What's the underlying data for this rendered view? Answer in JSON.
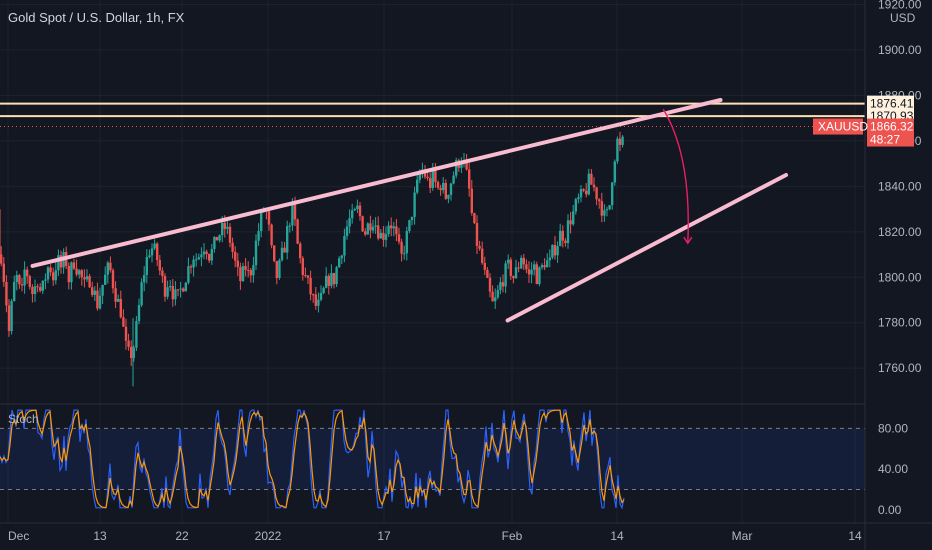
{
  "header": {
    "title": "Gold Spot / U.S. Dollar, 1h, FX"
  },
  "chart_data": {
    "type": "candlestick",
    "title": "Gold Spot / U.S. Dollar, 1h, FX",
    "currency": "USD",
    "price_axis": {
      "ticks": [
        "1920.00",
        "1900.00",
        "1880.00",
        "1860.00",
        "1840.00",
        "1820.00",
        "1800.00",
        "1780.00",
        "1760.00"
      ],
      "range": [
        1746,
        1922
      ]
    },
    "time_axis": {
      "labels": [
        "Dec",
        "13",
        "22",
        "2022",
        "17",
        "Feb",
        "14",
        "Mar",
        "14"
      ]
    },
    "price_labels": [
      {
        "text": "1876.41",
        "value": 1876.41
      },
      {
        "text": "1870.93",
        "value": 1870.93
      }
    ],
    "current": {
      "symbol": "XAUUSD",
      "price": "1866.32",
      "countdown": "48:27",
      "value": 1866.32
    },
    "resistance_lines": [
      1876.41,
      1870.93
    ],
    "channel": {
      "upper": [
        {
          "date": "2021-12-01",
          "price": 1805
        },
        {
          "date": "2022-02-23",
          "price": 1878
        }
      ],
      "lower": [
        {
          "date": "2022-01-28",
          "price": 1781
        },
        {
          "date": "2022-03-03",
          "price": 1845
        }
      ]
    },
    "projection": {
      "from": {
        "date": "2022-02-16",
        "price": 1874
      },
      "to": {
        "date": "2022-02-19",
        "price": 1815
      }
    },
    "candle_path": [
      [
        0,
        1810
      ],
      [
        4,
        1795
      ],
      [
        8,
        1775
      ],
      [
        12,
        1795
      ],
      [
        16,
        1800
      ],
      [
        20,
        1790
      ],
      [
        24,
        1805
      ],
      [
        28,
        1798
      ],
      [
        32,
        1792
      ],
      [
        36,
        1800
      ],
      [
        40,
        1792
      ],
      [
        44,
        1800
      ],
      [
        48,
        1806
      ],
      [
        52,
        1800
      ],
      [
        56,
        1808
      ],
      [
        60,
        1804
      ],
      [
        64,
        1810
      ],
      [
        68,
        1798
      ],
      [
        72,
        1808
      ],
      [
        76,
        1804
      ],
      [
        80,
        1800
      ],
      [
        84,
        1795
      ],
      [
        88,
        1800
      ],
      [
        92,
        1795
      ],
      [
        96,
        1788
      ],
      [
        100,
        1795
      ],
      [
        104,
        1800
      ],
      [
        108,
        1805
      ],
      [
        112,
        1797
      ],
      [
        116,
        1790
      ],
      [
        120,
        1785
      ],
      [
        124,
        1770
      ],
      [
        128,
        1765
      ],
      [
        132,
        1768
      ],
      [
        136,
        1780
      ],
      [
        140,
        1795
      ],
      [
        144,
        1805
      ],
      [
        148,
        1812
      ],
      [
        152,
        1813
      ],
      [
        156,
        1808
      ],
      [
        160,
        1800
      ],
      [
        164,
        1795
      ],
      [
        168,
        1800
      ],
      [
        172,
        1793
      ],
      [
        176,
        1790
      ],
      [
        180,
        1795
      ],
      [
        184,
        1800
      ],
      [
        188,
        1805
      ],
      [
        192,
        1810
      ],
      [
        196,
        1808
      ],
      [
        200,
        1812
      ],
      [
        204,
        1815
      ],
      [
        208,
        1810
      ],
      [
        212,
        1812
      ],
      [
        216,
        1818
      ],
      [
        220,
        1820
      ],
      [
        224,
        1822
      ],
      [
        228,
        1818
      ],
      [
        232,
        1810
      ],
      [
        236,
        1802
      ],
      [
        240,
        1798
      ],
      [
        244,
        1805
      ],
      [
        248,
        1800
      ],
      [
        252,
        1808
      ],
      [
        256,
        1818
      ],
      [
        260,
        1826
      ],
      [
        264,
        1832
      ],
      [
        268,
        1820
      ],
      [
        272,
        1805
      ],
      [
        276,
        1800
      ],
      [
        280,
        1808
      ],
      [
        284,
        1815
      ],
      [
        288,
        1825
      ],
      [
        292,
        1830
      ],
      [
        296,
        1815
      ],
      [
        300,
        1805
      ],
      [
        304,
        1800
      ],
      [
        308,
        1795
      ],
      [
        312,
        1790
      ],
      [
        316,
        1786
      ],
      [
        320,
        1790
      ],
      [
        324,
        1796
      ],
      [
        328,
        1800
      ],
      [
        332,
        1798
      ],
      [
        336,
        1805
      ],
      [
        340,
        1812
      ],
      [
        344,
        1820
      ],
      [
        348,
        1825
      ],
      [
        352,
        1826
      ],
      [
        356,
        1830
      ],
      [
        360,
        1825
      ],
      [
        364,
        1820
      ],
      [
        368,
        1824
      ],
      [
        372,
        1826
      ],
      [
        376,
        1822
      ],
      [
        380,
        1818
      ],
      [
        384,
        1820
      ],
      [
        388,
        1825
      ],
      [
        392,
        1822
      ],
      [
        396,
        1815
      ],
      [
        400,
        1808
      ],
      [
        404,
        1815
      ],
      [
        408,
        1822
      ],
      [
        412,
        1832
      ],
      [
        416,
        1840
      ],
      [
        420,
        1848
      ],
      [
        424,
        1845
      ],
      [
        428,
        1840
      ],
      [
        432,
        1845
      ],
      [
        436,
        1838
      ],
      [
        440,
        1842
      ],
      [
        444,
        1835
      ],
      [
        448,
        1840
      ],
      [
        452,
        1845
      ],
      [
        456,
        1850
      ],
      [
        460,
        1853
      ],
      [
        464,
        1848
      ],
      [
        468,
        1838
      ],
      [
        472,
        1822
      ],
      [
        476,
        1815
      ],
      [
        480,
        1808
      ],
      [
        484,
        1800
      ],
      [
        488,
        1793
      ],
      [
        492,
        1787
      ],
      [
        496,
        1792
      ],
      [
        500,
        1798
      ],
      [
        504,
        1802
      ],
      [
        508,
        1805
      ],
      [
        512,
        1800
      ],
      [
        516,
        1803
      ],
      [
        520,
        1810
      ],
      [
        524,
        1805
      ],
      [
        528,
        1800
      ],
      [
        532,
        1806
      ],
      [
        536,
        1800
      ],
      [
        540,
        1803
      ],
      [
        544,
        1808
      ],
      [
        548,
        1805
      ],
      [
        552,
        1812
      ],
      [
        556,
        1815
      ],
      [
        560,
        1820
      ],
      [
        564,
        1818
      ],
      [
        568,
        1825
      ],
      [
        572,
        1828
      ],
      [
        576,
        1833
      ],
      [
        580,
        1835
      ],
      [
        584,
        1838
      ],
      [
        588,
        1842
      ],
      [
        592,
        1840
      ],
      [
        596,
        1836
      ],
      [
        600,
        1832
      ],
      [
        604,
        1825
      ],
      [
        608,
        1830
      ],
      [
        612,
        1850
      ],
      [
        616,
        1860
      ],
      [
        620,
        1855
      ],
      [
        624,
        1866.32
      ]
    ],
    "oscillator": {
      "name": "Stoch",
      "ticks": [
        "80.00",
        "40.00",
        "0.00"
      ],
      "range": [
        -8,
        103
      ],
      "upper_band": 80,
      "lower_band": 20
    },
    "colors": {
      "background": "#131722",
      "up": "#26a69a",
      "down": "#ef5350",
      "channel": "#f8bbd0",
      "resistance": "#ffe0b2",
      "projection": "#e91e63",
      "stoch_k": "#2962ff",
      "stoch_d": "#ff9800",
      "label_price": "#fff3e0",
      "label_current": "#ef5350"
    }
  }
}
